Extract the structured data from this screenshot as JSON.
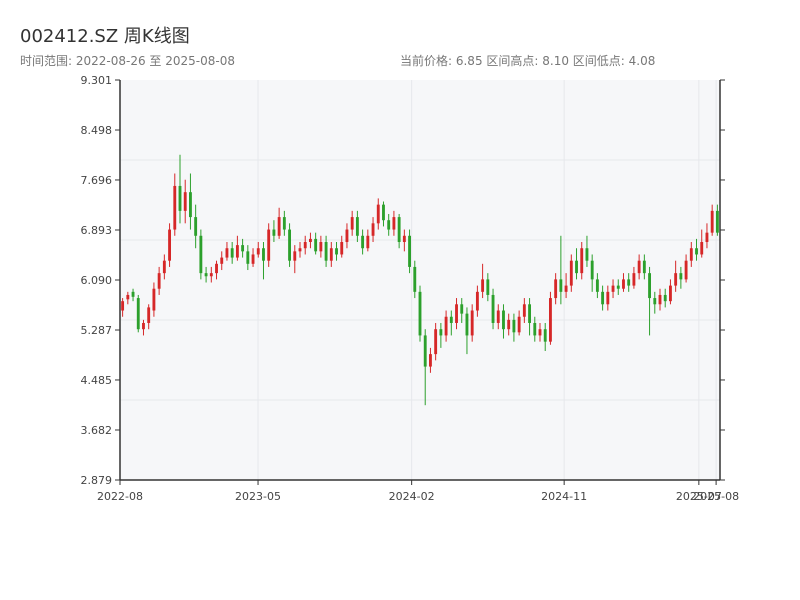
{
  "header": {
    "title": "002412.SZ 周K线图",
    "subtitle": "时间范围: 2022-08-26 至 2025-08-08",
    "stats": "当前价格: 6.85   区间高点: 8.10   区间低点: 4.08"
  },
  "colors": {
    "up": "#d62728",
    "down": "#2ca02c",
    "grid": "#e6e8ec",
    "plot_bg": "#f6f7f9",
    "axis": "#333333"
  },
  "chart_data": {
    "type": "candlestick",
    "title": "002412.SZ 周K线图",
    "ylim": [
      2.879,
      9.301
    ],
    "y_ticks": [
      "2.879",
      "3.682",
      "4.485",
      "5.287",
      "6.090",
      "6.893",
      "7.696",
      "8.498",
      "9.301"
    ],
    "x_ticks": [
      "2022-08",
      "2023-05",
      "2024-02",
      "2024-11",
      "2025-07",
      "2025-08"
    ],
    "x_range": [
      "2022-08-26",
      "2025-08-08"
    ],
    "date_start": "2022-08-26",
    "date_end": "2025-08-08",
    "grid": true,
    "candles": [
      [
        5.6,
        5.75,
        5.5,
        5.8
      ],
      [
        5.78,
        5.85,
        5.7,
        5.9
      ],
      [
        5.9,
        5.82,
        5.75,
        5.95
      ],
      [
        5.8,
        5.3,
        5.25,
        5.85
      ],
      [
        5.3,
        5.4,
        5.2,
        5.45
      ],
      [
        5.4,
        5.65,
        5.3,
        5.7
      ],
      [
        5.6,
        5.95,
        5.5,
        6.05
      ],
      [
        5.95,
        6.2,
        5.85,
        6.3
      ],
      [
        6.2,
        6.4,
        6.1,
        6.5
      ],
      [
        6.4,
        6.9,
        6.3,
        7.0
      ],
      [
        6.9,
        7.6,
        6.8,
        7.8
      ],
      [
        7.6,
        7.2,
        7.0,
        8.1
      ],
      [
        7.2,
        7.5,
        7.0,
        7.7
      ],
      [
        7.5,
        7.1,
        6.9,
        7.8
      ],
      [
        7.1,
        6.8,
        6.6,
        7.3
      ],
      [
        6.8,
        6.2,
        6.1,
        6.9
      ],
      [
        6.2,
        6.15,
        6.05,
        6.3
      ],
      [
        6.15,
        6.2,
        6.05,
        6.3
      ],
      [
        6.2,
        6.35,
        6.1,
        6.4
      ],
      [
        6.35,
        6.45,
        6.25,
        6.55
      ],
      [
        6.45,
        6.6,
        6.4,
        6.7
      ],
      [
        6.6,
        6.45,
        6.35,
        6.7
      ],
      [
        6.45,
        6.65,
        6.4,
        6.8
      ],
      [
        6.65,
        6.55,
        6.45,
        6.75
      ],
      [
        6.55,
        6.35,
        6.25,
        6.65
      ],
      [
        6.35,
        6.5,
        6.3,
        6.6
      ],
      [
        6.5,
        6.6,
        6.45,
        6.7
      ],
      [
        6.6,
        6.4,
        6.1,
        6.7
      ],
      [
        6.4,
        6.9,
        6.3,
        7.0
      ],
      [
        6.9,
        6.8,
        6.7,
        7.05
      ],
      [
        6.8,
        7.1,
        6.75,
        7.25
      ],
      [
        7.1,
        6.9,
        6.8,
        7.2
      ],
      [
        6.9,
        6.4,
        6.3,
        7.0
      ],
      [
        6.4,
        6.55,
        6.2,
        6.65
      ],
      [
        6.55,
        6.6,
        6.45,
        6.7
      ],
      [
        6.6,
        6.7,
        6.5,
        6.8
      ],
      [
        6.7,
        6.75,
        6.6,
        6.85
      ],
      [
        6.75,
        6.55,
        6.5,
        6.85
      ],
      [
        6.55,
        6.7,
        6.45,
        6.8
      ],
      [
        6.7,
        6.4,
        6.3,
        6.8
      ],
      [
        6.4,
        6.6,
        6.3,
        6.7
      ],
      [
        6.6,
        6.5,
        6.4,
        6.7
      ],
      [
        6.5,
        6.7,
        6.45,
        6.8
      ],
      [
        6.7,
        6.9,
        6.6,
        7.0
      ],
      [
        6.9,
        7.1,
        6.8,
        7.2
      ],
      [
        7.1,
        6.8,
        6.7,
        7.2
      ],
      [
        6.8,
        6.6,
        6.5,
        6.9
      ],
      [
        6.6,
        6.8,
        6.55,
        6.9
      ],
      [
        6.8,
        7.0,
        6.7,
        7.1
      ],
      [
        7.0,
        7.3,
        6.9,
        7.4
      ],
      [
        7.3,
        7.05,
        6.95,
        7.35
      ],
      [
        7.05,
        6.9,
        6.8,
        7.15
      ],
      [
        6.9,
        7.1,
        6.8,
        7.2
      ],
      [
        7.1,
        6.7,
        6.6,
        7.15
      ],
      [
        6.7,
        6.8,
        6.55,
        6.9
      ],
      [
        6.8,
        6.3,
        6.2,
        6.9
      ],
      [
        6.3,
        5.9,
        5.8,
        6.4
      ],
      [
        5.9,
        5.2,
        5.1,
        6.0
      ],
      [
        5.2,
        4.7,
        4.08,
        5.3
      ],
      [
        4.7,
        4.9,
        4.6,
        5.0
      ],
      [
        4.9,
        5.3,
        4.8,
        5.4
      ],
      [
        5.3,
        5.2,
        5.0,
        5.4
      ],
      [
        5.2,
        5.5,
        5.1,
        5.6
      ],
      [
        5.5,
        5.4,
        5.2,
        5.6
      ],
      [
        5.4,
        5.7,
        5.3,
        5.8
      ],
      [
        5.7,
        5.55,
        5.4,
        5.8
      ],
      [
        5.55,
        5.2,
        4.9,
        5.65
      ],
      [
        5.2,
        5.6,
        5.1,
        5.7
      ],
      [
        5.6,
        5.9,
        5.5,
        6.0
      ],
      [
        5.9,
        6.1,
        5.8,
        6.35
      ],
      [
        6.1,
        5.85,
        5.75,
        6.2
      ],
      [
        5.85,
        5.4,
        5.3,
        5.95
      ],
      [
        5.4,
        5.6,
        5.3,
        5.7
      ],
      [
        5.6,
        5.3,
        5.15,
        5.7
      ],
      [
        5.3,
        5.45,
        5.2,
        5.55
      ],
      [
        5.45,
        5.25,
        5.1,
        5.55
      ],
      [
        5.25,
        5.5,
        5.2,
        5.6
      ],
      [
        5.5,
        5.7,
        5.4,
        5.8
      ],
      [
        5.7,
        5.4,
        5.2,
        5.8
      ],
      [
        5.4,
        5.2,
        5.1,
        5.5
      ],
      [
        5.2,
        5.3,
        5.1,
        5.4
      ],
      [
        5.3,
        5.1,
        4.95,
        5.4
      ],
      [
        5.1,
        5.8,
        5.05,
        5.9
      ],
      [
        5.8,
        6.1,
        5.7,
        6.2
      ],
      [
        6.1,
        5.9,
        5.7,
        6.8
      ],
      [
        5.9,
        6.0,
        5.8,
        6.2
      ],
      [
        6.0,
        6.4,
        5.9,
        6.5
      ],
      [
        6.4,
        6.2,
        6.1,
        6.6
      ],
      [
        6.2,
        6.6,
        6.1,
        6.7
      ],
      [
        6.6,
        6.4,
        6.3,
        6.8
      ],
      [
        6.4,
        6.1,
        5.9,
        6.5
      ],
      [
        6.1,
        5.9,
        5.8,
        6.2
      ],
      [
        5.9,
        5.7,
        5.6,
        6.0
      ],
      [
        5.7,
        5.9,
        5.6,
        6.0
      ],
      [
        5.9,
        6.0,
        5.8,
        6.1
      ],
      [
        6.0,
        5.95,
        5.85,
        6.1
      ],
      [
        5.95,
        6.1,
        5.9,
        6.2
      ],
      [
        6.1,
        6.0,
        5.9,
        6.2
      ],
      [
        6.0,
        6.2,
        5.95,
        6.3
      ],
      [
        6.2,
        6.4,
        6.1,
        6.5
      ],
      [
        6.4,
        6.2,
        6.1,
        6.5
      ],
      [
        6.2,
        5.8,
        5.2,
        6.3
      ],
      [
        5.8,
        5.7,
        5.55,
        5.9
      ],
      [
        5.7,
        5.85,
        5.6,
        5.95
      ],
      [
        5.85,
        5.75,
        5.65,
        5.95
      ],
      [
        5.75,
        6.0,
        5.7,
        6.1
      ],
      [
        6.0,
        6.2,
        5.9,
        6.4
      ],
      [
        6.2,
        6.1,
        5.95,
        6.3
      ],
      [
        6.1,
        6.4,
        6.05,
        6.5
      ],
      [
        6.4,
        6.6,
        6.3,
        6.7
      ],
      [
        6.6,
        6.5,
        6.4,
        6.75
      ],
      [
        6.5,
        6.7,
        6.45,
        6.9
      ],
      [
        6.7,
        6.85,
        6.6,
        7.0
      ],
      [
        6.85,
        7.2,
        6.8,
        7.3
      ],
      [
        7.2,
        6.85,
        6.8,
        7.3
      ]
    ]
  }
}
